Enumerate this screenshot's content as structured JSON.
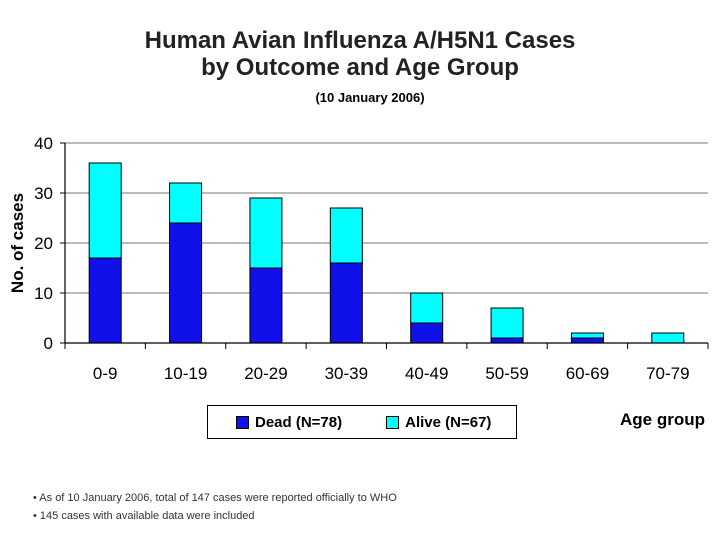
{
  "chart_data": {
    "type": "bar",
    "stacked": true,
    "title_line1": "Human Avian Influenza A/H5N1 Cases",
    "title_line2": "by Outcome and Age Group",
    "subtitle": "(10 January 2006)",
    "xlabel": "Age group",
    "ylabel": "No. of cases",
    "ylim": [
      0,
      40
    ],
    "yticks": [
      "0",
      "10",
      "20",
      "30",
      "40"
    ],
    "grid": true,
    "legend_position": "bottom",
    "categories": [
      "0-9",
      "10-19",
      "20-29",
      "30-39",
      "40-49",
      "50-59",
      "60-69",
      "70-79"
    ],
    "series": [
      {
        "name": "Dead (N=78)",
        "color": "#1010e8",
        "values": [
          17,
          24,
          15,
          16,
          4,
          1,
          1,
          0
        ]
      },
      {
        "name": "Alive (N=67)",
        "color": "#00ffff",
        "values": [
          19,
          8,
          14,
          11,
          6,
          6,
          1,
          2
        ]
      }
    ]
  },
  "notes": [
    "• As of 10 January 2006, total of 147 cases were reported officially to WHO",
    "• 145 cases with available data were included"
  ]
}
